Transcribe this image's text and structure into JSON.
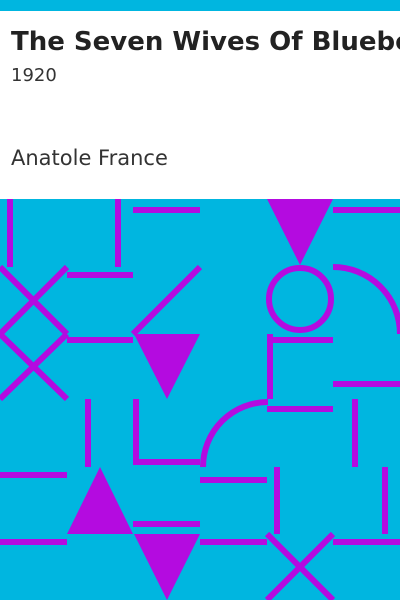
{
  "cover": {
    "title": "The Seven Wives Of Bluebeard",
    "year": "1920",
    "author": "Anatole France"
  },
  "colors": {
    "band": "#00b6e0",
    "pattern_background": "#00b6e0",
    "pattern_shape": "#b40be0",
    "title_text": "#222222",
    "subtitle_text": "#333333"
  },
  "pattern_motifs": [
    "cross",
    "vertical-line",
    "horizontal-line",
    "triangle-down",
    "triangle-up",
    "circle",
    "quarter-arc",
    "corner-bracket"
  ]
}
